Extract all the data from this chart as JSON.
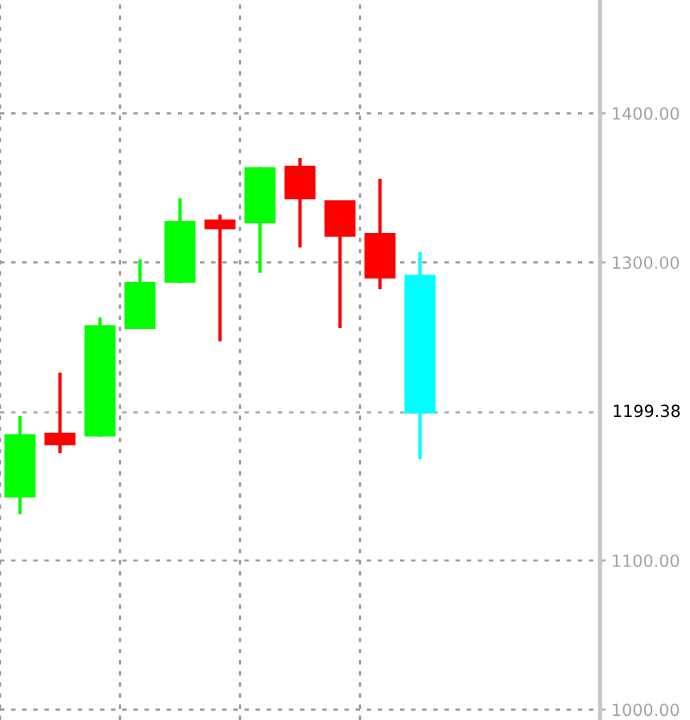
{
  "chart_data": {
    "type": "candlestick",
    "categories": [
      null,
      null,
      null,
      null,
      null,
      null,
      null,
      null,
      null,
      null,
      null,
      null,
      null,
      null,
      null
    ],
    "ohlc": [
      [
        1143,
        1197,
        1131,
        1184
      ],
      [
        1185,
        1226,
        1172,
        1178
      ],
      [
        1184,
        1263,
        1183,
        1257
      ],
      [
        1256,
        1302,
        1256,
        1286
      ],
      [
        1287,
        1343,
        1286,
        1327
      ],
      [
        1328,
        1332,
        1247,
        1323
      ],
      [
        1327,
        1364,
        1293,
        1363
      ],
      [
        1364,
        1370,
        1310,
        1343
      ],
      [
        1341,
        1341,
        1256,
        1318
      ],
      [
        1319,
        1356,
        1282,
        1290
      ],
      [
        1291,
        1307,
        1168,
        1199.38
      ],
      null,
      null,
      null,
      null
    ],
    "colors": [
      "#00ff00",
      "#ff0000",
      "#00ff00",
      "#00ff00",
      "#00ff00",
      "#ff0000",
      "#00ff00",
      "#ff0000",
      "#ff0000",
      "#ff0000",
      "#00ffff",
      null,
      null,
      null,
      null
    ],
    "ylim": [
      993,
      1476
    ],
    "yticks": [
      {
        "value": 1000,
        "label": "1000.00"
      },
      {
        "value": 1100,
        "label": "1100.00"
      },
      {
        "value": 1300,
        "label": "1300.00"
      },
      {
        "value": 1400,
        "label": "1400.00"
      }
    ],
    "ref_lines": [
      {
        "axis": "y",
        "value": 1199.38,
        "label": "1199.38"
      }
    ],
    "grid": true
  }
}
